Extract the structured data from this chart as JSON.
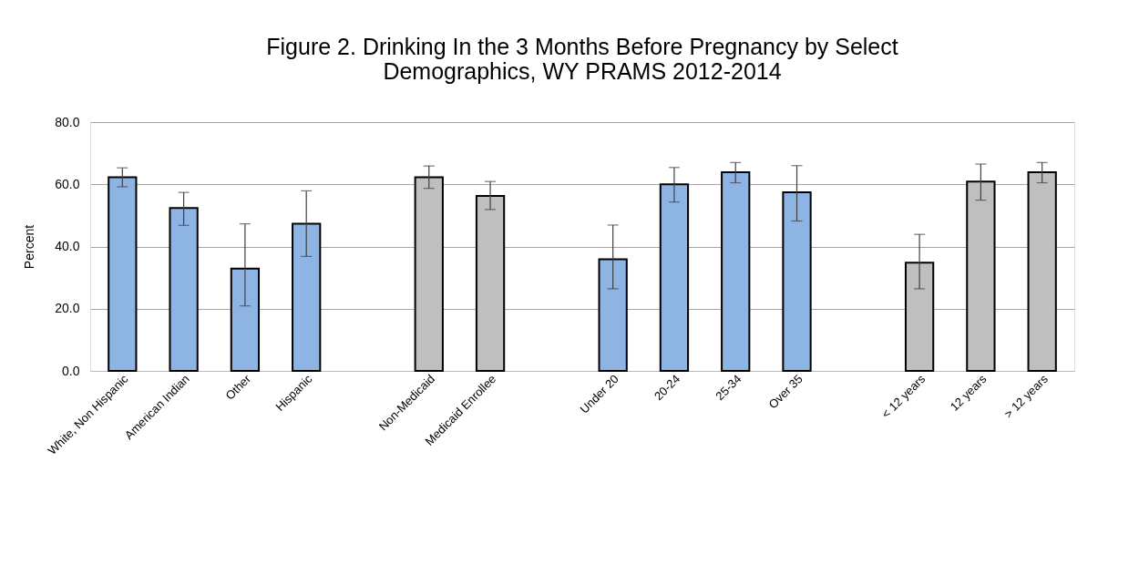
{
  "chart_data": {
    "type": "bar",
    "title": "Figure 2. Drinking In the 3 Months Before Pregnancy by Select Demographics, WY PRAMS 2012-2014",
    "categories": [
      "White, Non Hispanic",
      "American Indian",
      "Other",
      "Hispanic",
      null,
      "Non-Medicaid",
      "Medicaid Enrollee",
      null,
      "Under 20",
      "20-24",
      "25-34",
      "Over 35",
      null,
      "< 12 years",
      "12 years",
      "> 12 years"
    ],
    "values": [
      62.3,
      52.4,
      32.9,
      47.3,
      null,
      62.3,
      56.3,
      null,
      35.9,
      60.0,
      63.9,
      57.4,
      null,
      34.8,
      60.9,
      63.9
    ],
    "errors": [
      [
        59.2,
        65.3
      ],
      [
        46.8,
        57.4
      ],
      [
        20.9,
        47.3
      ],
      [
        36.8,
        57.9
      ],
      null,
      [
        58.7,
        65.9
      ],
      [
        51.9,
        60.9
      ],
      null,
      [
        26.4,
        46.9
      ],
      [
        54.3,
        65.4
      ],
      [
        60.5,
        67.0
      ],
      [
        48.2,
        66.0
      ],
      null,
      [
        26.4,
        43.9
      ],
      [
        54.9,
        66.5
      ],
      [
        60.5,
        67.0
      ]
    ],
    "colors": [
      "#8eb4e3",
      "#8eb4e3",
      "#8eb4e3",
      "#8eb4e3",
      null,
      "#bfbfbf",
      "#bfbfbf",
      null,
      "#8eb4e3",
      "#8eb4e3",
      "#8eb4e3",
      "#8eb4e3",
      null,
      "#bfbfbf",
      "#bfbfbf",
      "#bfbfbf"
    ],
    "ylabel": "Percent",
    "ylim": [
      0,
      80
    ],
    "yticks": [
      {
        "value": 0,
        "label": "0.0"
      },
      {
        "value": 20,
        "label": "20.0"
      },
      {
        "value": 40,
        "label": "40.0"
      },
      {
        "value": 60,
        "label": "60.0"
      },
      {
        "value": 80,
        "label": "80.0"
      }
    ],
    "grid": "y"
  }
}
